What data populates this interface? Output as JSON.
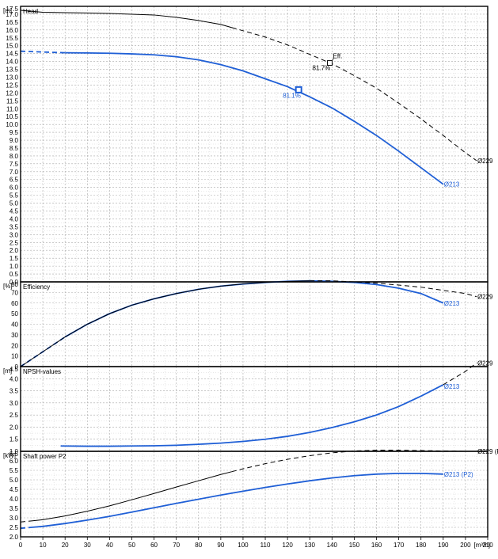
{
  "chart_data": {
    "type": "line",
    "x_axis": {
      "label": "[m³/h]",
      "range": [
        0,
        210
      ],
      "ticks": [
        0,
        10,
        20,
        30,
        40,
        50,
        60,
        70,
        80,
        90,
        100,
        110,
        120,
        130,
        140,
        150,
        160,
        170,
        180,
        190,
        200,
        210
      ]
    },
    "colors": {
      "d213": "#1f5fd6",
      "d229": "#000000"
    },
    "panels": [
      {
        "id": "head",
        "title": "Head",
        "unit": "[m]",
        "ylim": [
          0,
          17.5
        ],
        "major_step": 0.5,
        "minor_step": 0.25,
        "tick_labels": [
          "0.0",
          "0.5",
          "1.0",
          "1.5",
          "2.0",
          "2.5",
          "3.0",
          "3.5",
          "4.0",
          "4.5",
          "5.0",
          "5.5",
          "6.0",
          "6.5",
          "7.0",
          "7.5",
          "8.0",
          "8.5",
          "9.0",
          "9.5",
          "10.0",
          "10.5",
          "11.0",
          "11.5",
          "12.0",
          "12.5",
          "13.0",
          "13.5",
          "14.0",
          "14.5",
          "15.0",
          "15.5",
          "16.0",
          "16.5",
          "17.0",
          "17.5"
        ],
        "series": [
          {
            "name": "Ø213",
            "key": "d213",
            "dash_until": 20,
            "points": [
              [
                0,
                14.65
              ],
              [
                10,
                14.6
              ],
              [
                20,
                14.55
              ],
              [
                30,
                14.54
              ],
              [
                40,
                14.52
              ],
              [
                50,
                14.48
              ],
              [
                60,
                14.42
              ],
              [
                70,
                14.3
              ],
              [
                80,
                14.1
              ],
              [
                90,
                13.8
              ],
              [
                100,
                13.4
              ],
              [
                110,
                12.9
              ],
              [
                120,
                12.4
              ],
              [
                130,
                11.75
              ],
              [
                140,
                11.05
              ],
              [
                150,
                10.2
              ],
              [
                160,
                9.3
              ],
              [
                170,
                8.3
              ],
              [
                180,
                7.25
              ],
              [
                190,
                6.2
              ]
            ]
          },
          {
            "name": "Ø229",
            "key": "d229",
            "dash_from": 95,
            "points": [
              [
                0,
                17.25
              ],
              [
                10,
                17.12
              ],
              [
                20,
                17.1
              ],
              [
                30,
                17.08
              ],
              [
                40,
                17.05
              ],
              [
                50,
                17.0
              ],
              [
                60,
                16.95
              ],
              [
                70,
                16.8
              ],
              [
                80,
                16.6
              ],
              [
                90,
                16.35
              ],
              [
                100,
                15.95
              ],
              [
                110,
                15.55
              ],
              [
                120,
                15.05
              ],
              [
                130,
                14.45
              ],
              [
                140,
                13.85
              ],
              [
                150,
                13.1
              ],
              [
                160,
                12.3
              ],
              [
                170,
                11.35
              ],
              [
                180,
                10.35
              ],
              [
                190,
                9.3
              ],
              [
                200,
                8.2
              ],
              [
                205,
                7.7
              ]
            ]
          }
        ],
        "markers": [
          {
            "series": "d213",
            "x": 125,
            "y": 12.2,
            "label": "81.1%"
          },
          {
            "series": "d229",
            "x": 139,
            "y": 13.9,
            "label": "81.7%",
            "tag": "Eff."
          }
        ]
      },
      {
        "id": "efficiency",
        "title": "Efficiency",
        "unit": "[%]",
        "ylim": [
          0,
          80
        ],
        "major_step": 10,
        "minor_step": 5,
        "tick_labels": [
          "0",
          "10",
          "20",
          "30",
          "40",
          "50",
          "60",
          "70",
          "80"
        ],
        "series": [
          {
            "name": "Ø213",
            "key": "d213",
            "dash_until": 20,
            "points": [
              [
                0,
                0
              ],
              [
                10,
                14
              ],
              [
                20,
                28
              ],
              [
                30,
                40
              ],
              [
                40,
                50
              ],
              [
                50,
                58
              ],
              [
                60,
                64
              ],
              [
                70,
                69
              ],
              [
                80,
                73
              ],
              [
                90,
                76
              ],
              [
                100,
                78
              ],
              [
                110,
                79.5
              ],
              [
                120,
                80.5
              ],
              [
                130,
                81
              ],
              [
                140,
                80.5
              ],
              [
                150,
                79.5
              ],
              [
                160,
                77.5
              ],
              [
                170,
                74
              ],
              [
                180,
                69
              ],
              [
                190,
                60
              ]
            ]
          },
          {
            "name": "Ø229",
            "key": "d229",
            "dash_from": 130,
            "points": [
              [
                0,
                0
              ],
              [
                10,
                14
              ],
              [
                20,
                28
              ],
              [
                30,
                40
              ],
              [
                40,
                50
              ],
              [
                50,
                58
              ],
              [
                60,
                64
              ],
              [
                70,
                69
              ],
              [
                80,
                73
              ],
              [
                90,
                76
              ],
              [
                100,
                78
              ],
              [
                110,
                79.5
              ],
              [
                120,
                80.5
              ],
              [
                130,
                81
              ],
              [
                140,
                81
              ],
              [
                150,
                80
              ],
              [
                160,
                78.8
              ],
              [
                170,
                77
              ],
              [
                180,
                75
              ],
              [
                190,
                72
              ],
              [
                200,
                69
              ],
              [
                205,
                66
              ]
            ]
          }
        ]
      },
      {
        "id": "npsh",
        "title": "NPSH-values",
        "unit": "[m]",
        "ylim": [
          1.0,
          4.5
        ],
        "major_step": 0.5,
        "minor_step": 0.25,
        "tick_labels": [
          "1.0",
          "1.5",
          "2.0",
          "2.5",
          "3.0",
          "3.5",
          "4.0",
          "4.5"
        ],
        "series": [
          {
            "name": "Ø213",
            "key": "d213",
            "points": [
              [
                18,
                1.22
              ],
              [
                30,
                1.21
              ],
              [
                40,
                1.21
              ],
              [
                50,
                1.22
              ],
              [
                60,
                1.23
              ],
              [
                70,
                1.25
              ],
              [
                80,
                1.29
              ],
              [
                90,
                1.34
              ],
              [
                100,
                1.41
              ],
              [
                110,
                1.5
              ],
              [
                120,
                1.62
              ],
              [
                130,
                1.78
              ],
              [
                140,
                1.98
              ],
              [
                150,
                2.22
              ],
              [
                160,
                2.5
              ],
              [
                170,
                2.85
              ],
              [
                180,
                3.28
              ],
              [
                190,
                3.75
              ]
            ]
          },
          {
            "name": "Ø229",
            "key": "d229",
            "dash_from": 190,
            "points": [
              [
                190,
                3.75
              ],
              [
                200,
                4.3
              ],
              [
                205,
                4.65
              ]
            ]
          }
        ]
      },
      {
        "id": "power",
        "title": "Shaft power P2",
        "unit": "[kW]",
        "ylim": [
          2.0,
          6.5
        ],
        "major_step": 0.5,
        "minor_step": 0.25,
        "tick_labels": [
          "2.0",
          "2.5",
          "3.0",
          "3.5",
          "4.0",
          "4.5",
          "5.0",
          "5.5",
          "6.0",
          "6.5"
        ],
        "series": [
          {
            "name": "Ø213 (P2)",
            "key": "d213",
            "dash_until": 5,
            "points": [
              [
                0,
                2.45
              ],
              [
                10,
                2.55
              ],
              [
                20,
                2.7
              ],
              [
                30,
                2.88
              ],
              [
                40,
                3.08
              ],
              [
                50,
                3.3
              ],
              [
                60,
                3.53
              ],
              [
                70,
                3.76
              ],
              [
                80,
                3.98
              ],
              [
                90,
                4.2
              ],
              [
                100,
                4.4
              ],
              [
                110,
                4.6
              ],
              [
                120,
                4.78
              ],
              [
                130,
                4.95
              ],
              [
                140,
                5.1
              ],
              [
                150,
                5.22
              ],
              [
                160,
                5.3
              ],
              [
                170,
                5.34
              ],
              [
                180,
                5.34
              ],
              [
                190,
                5.3
              ]
            ]
          },
          {
            "name": "Ø229 (P2)",
            "key": "d229",
            "dash_until": 5,
            "dash_from": 95,
            "points": [
              [
                0,
                2.78
              ],
              [
                10,
                2.9
              ],
              [
                20,
                3.1
              ],
              [
                30,
                3.35
              ],
              [
                40,
                3.63
              ],
              [
                50,
                3.95
              ],
              [
                60,
                4.28
              ],
              [
                70,
                4.62
              ],
              [
                80,
                4.95
              ],
              [
                90,
                5.28
              ],
              [
                100,
                5.58
              ],
              [
                110,
                5.85
              ],
              [
                120,
                6.08
              ],
              [
                130,
                6.27
              ],
              [
                140,
                6.42
              ],
              [
                150,
                6.52
              ],
              [
                160,
                6.56
              ],
              [
                170,
                6.56
              ],
              [
                180,
                6.54
              ],
              [
                190,
                6.52
              ],
              [
                200,
                6.5
              ],
              [
                205,
                6.5
              ]
            ]
          }
        ]
      }
    ]
  }
}
